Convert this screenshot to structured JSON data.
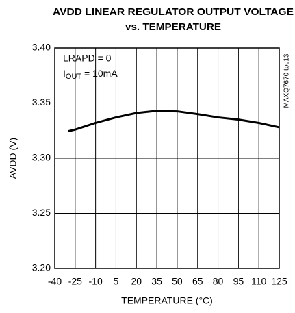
{
  "chart_data": {
    "type": "line",
    "title": [
      "AVDD LINEAR REGULATOR OUTPUT VOLTAGE",
      "vs. TEMPERATURE"
    ],
    "x_label": "TEMPERATURE (°C)",
    "y_label": "AVDD (V)",
    "annotations": [
      "LRAPD = 0",
      [
        "I",
        "OUT",
        " = 10mA"
      ]
    ],
    "side_note": "MAXQ7670 toc13",
    "x": [
      -30,
      -25,
      -10,
      5,
      20,
      35,
      50,
      65,
      80,
      95,
      110,
      125
    ],
    "series": [
      {
        "name": "AVDD",
        "color": "#000000",
        "values": [
          3.3245,
          3.326,
          3.332,
          3.337,
          3.341,
          3.343,
          3.3425,
          3.34,
          3.337,
          3.335,
          3.332,
          3.328
        ]
      }
    ],
    "xlim": [
      -40,
      125
    ],
    "xticks": [
      -40,
      -25,
      -10,
      5,
      20,
      35,
      50,
      65,
      80,
      95,
      110,
      125
    ],
    "ylim": [
      3.2,
      3.4
    ],
    "yticks": [
      {
        "value": 3.2,
        "label": "3.20"
      },
      3.25,
      {
        "value": 3.3,
        "label": "3.30"
      },
      3.35,
      {
        "value": 3.4,
        "label": "3.40"
      }
    ],
    "grid": true
  }
}
